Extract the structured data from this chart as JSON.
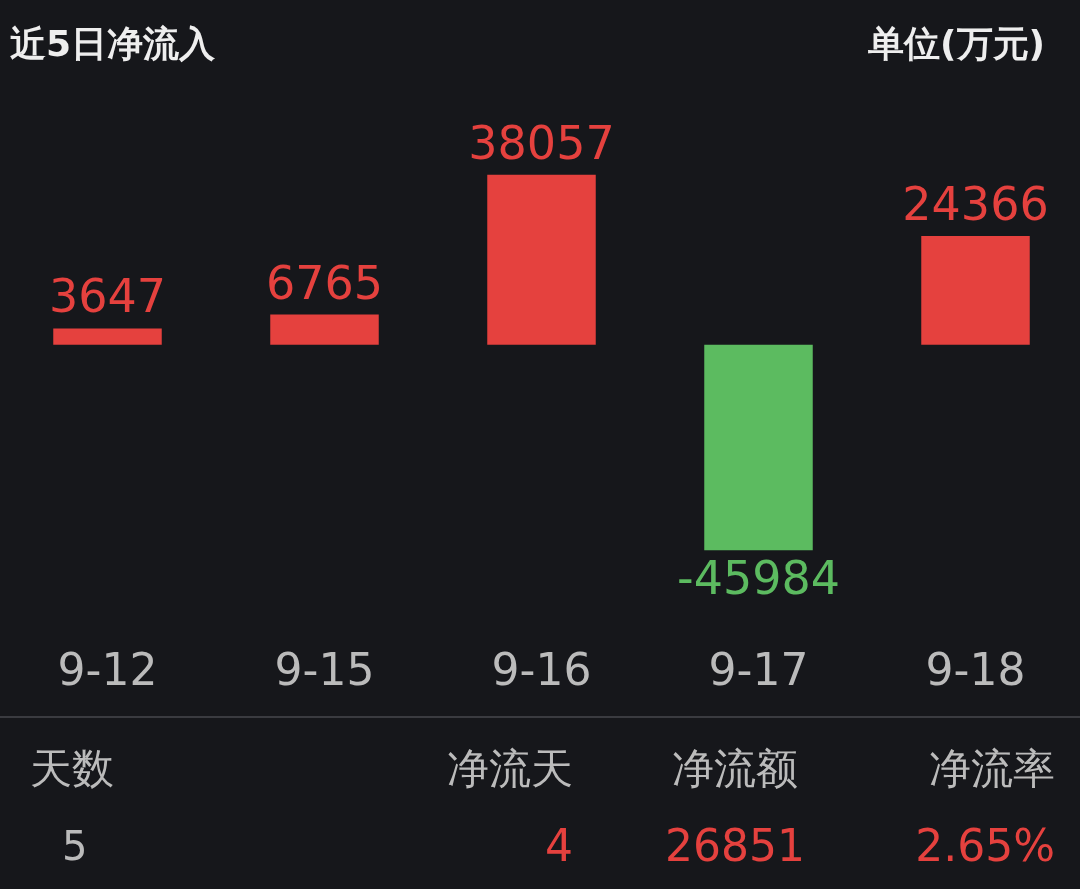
{
  "chart_data": {
    "type": "bar",
    "title": "近5日净流入",
    "categories": [
      "9-12",
      "9-15",
      "9-16",
      "9-17",
      "9-18"
    ],
    "values": [
      3647,
      6765,
      38057,
      -45984,
      24366
    ],
    "colors": [
      "#e5413e",
      "#e5413e",
      "#e5413e",
      "#5cbb60",
      "#e5413e"
    ],
    "data_labels": true,
    "annotations": [
      "单位(万元)",
      "天数",
      "5",
      "净流天",
      "4",
      "净流额",
      "26851",
      "净流率",
      "2.65%"
    ]
  }
}
